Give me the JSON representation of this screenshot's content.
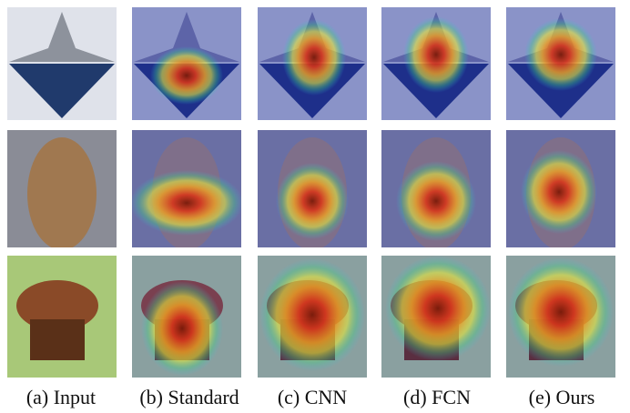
{
  "captions": [
    "(a) Input",
    "(b) Standard",
    "(c) CNN",
    "(d) FCN",
    "(e) Ours"
  ]
}
